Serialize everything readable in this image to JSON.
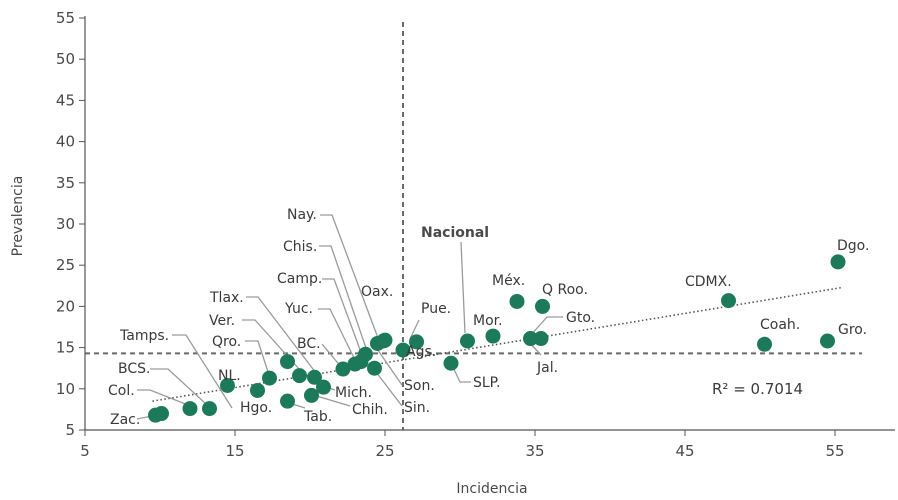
{
  "chart_data": {
    "type": "scatter",
    "title": "",
    "xlabel": "Incidencia",
    "ylabel": "Prevalencia",
    "xlim": [
      5,
      55
    ],
    "ylim": [
      5,
      55
    ],
    "xticks": [
      5,
      15,
      25,
      35,
      45,
      55
    ],
    "yticks": [
      5,
      10,
      15,
      20,
      25,
      30,
      35,
      40,
      45,
      50,
      55
    ],
    "grid": false,
    "marker_color": "#1c7a5a",
    "reference_lines": {
      "vertical_x": 26.2,
      "horizontal_y": 14.3
    },
    "trendline": {
      "type": "linear",
      "x0": 9.5,
      "y0": 8.5,
      "x1": 55.5,
      "y1": 22.3,
      "r2_label": "R² = 0.7014"
    },
    "points": [
      {
        "label": "Zac.",
        "x": 9.7,
        "y": 6.8
      },
      {
        "label": "",
        "x": 10.1,
        "y": 7.0
      },
      {
        "label": "Col.",
        "x": 12.0,
        "y": 7.6
      },
      {
        "label": "BCS.",
        "x": 13.3,
        "y": 7.6
      },
      {
        "label": "NL.",
        "x": 14.5,
        "y": 10.4
      },
      {
        "label": "Tamps.",
        "x": 17.3,
        "y": 11.3
      },
      {
        "label": "Hgo.",
        "x": 16.5,
        "y": 9.8
      },
      {
        "label": "Qro.",
        "x": 18.5,
        "y": 13.3
      },
      {
        "label": "Tab.",
        "x": 18.5,
        "y": 8.5
      },
      {
        "label": "Ver.",
        "x": 19.3,
        "y": 11.6
      },
      {
        "label": "Tlax.",
        "x": 20.3,
        "y": 11.4
      },
      {
        "label": "Chih.",
        "x": 20.1,
        "y": 9.2
      },
      {
        "label": "Mich.",
        "x": 20.9,
        "y": 10.2
      },
      {
        "label": "BC.",
        "x": 22.2,
        "y": 12.4
      },
      {
        "label": "Yuc.",
        "x": 23.0,
        "y": 13.0
      },
      {
        "label": "Camp.",
        "x": 23.4,
        "y": 13.3
      },
      {
        "label": "Chis.",
        "x": 23.7,
        "y": 14.2
      },
      {
        "label": "Sin.",
        "x": 24.3,
        "y": 12.5
      },
      {
        "label": "Son.",
        "x": 24.5,
        "y": 15.5
      },
      {
        "label": "Nay.",
        "x": 25.0,
        "y": 15.9
      },
      {
        "label": "Oax.",
        "x": 24.9,
        "y": 15.8
      },
      {
        "label": "Ags.",
        "x": 26.2,
        "y": 14.7
      },
      {
        "label": "Pue.",
        "x": 27.1,
        "y": 15.7
      },
      {
        "label": "SLP.",
        "x": 29.4,
        "y": 13.1
      },
      {
        "label": "Nacional",
        "x": 30.5,
        "y": 15.8
      },
      {
        "label": "Mor.",
        "x": 32.2,
        "y": 16.4
      },
      {
        "label": "Méx.",
        "x": 33.8,
        "y": 20.6
      },
      {
        "label": "Jal.",
        "x": 34.7,
        "y": 16.1
      },
      {
        "label": "Gto.",
        "x": 35.4,
        "y": 16.1
      },
      {
        "label": "Q Roo.",
        "x": 35.5,
        "y": 20.0
      },
      {
        "label": "CDMX.",
        "x": 47.9,
        "y": 20.7
      },
      {
        "label": "Coah.",
        "x": 50.3,
        "y": 15.4
      },
      {
        "label": "Gro.",
        "x": 54.5,
        "y": 15.8
      },
      {
        "label": "Dgo.",
        "x": 55.2,
        "y": 25.4
      }
    ]
  }
}
